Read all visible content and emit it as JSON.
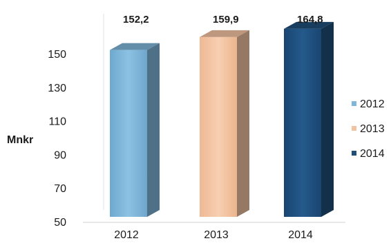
{
  "chart_data": {
    "type": "bar",
    "categories": [
      "2012",
      "2013",
      "2014"
    ],
    "values": [
      152.2,
      159.9,
      164.8
    ],
    "data_labels": [
      "152,2",
      "159,9",
      "164,8"
    ],
    "colors": [
      "#7fb6d9",
      "#f2c3a2",
      "#1f4e79"
    ],
    "title": "",
    "xlabel": "",
    "ylabel": "Mnkr",
    "ylim": [
      50,
      160
    ],
    "yticks": [
      "150",
      "130",
      "110",
      "90",
      "70",
      "50"
    ],
    "ytick_values": [
      150,
      130,
      110,
      90,
      70,
      50
    ],
    "legend": {
      "position": "right",
      "entries": [
        "2012",
        "2013",
        "2014"
      ]
    },
    "grid": false,
    "style": "3d-column"
  }
}
